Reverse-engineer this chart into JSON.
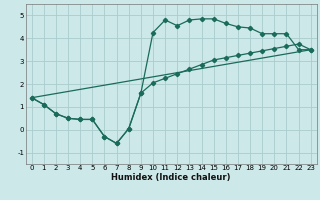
{
  "xlabel": "Humidex (Indice chaleur)",
  "bg_color": "#cce8e8",
  "grid_color": "#aacccc",
  "line_color": "#1a6b5a",
  "ylim": [
    -1.5,
    5.5
  ],
  "xlim": [
    -0.5,
    23.5
  ],
  "yticks": [
    -1,
    0,
    1,
    2,
    3,
    4,
    5
  ],
  "xticks": [
    0,
    1,
    2,
    3,
    4,
    5,
    6,
    7,
    8,
    9,
    10,
    11,
    12,
    13,
    14,
    15,
    16,
    17,
    18,
    19,
    20,
    21,
    22,
    23
  ],
  "line1_x": [
    0,
    1,
    2,
    3,
    4,
    5,
    6,
    7,
    8,
    9,
    10,
    11,
    12,
    13,
    14,
    15,
    16,
    17,
    18,
    19,
    20,
    21,
    22,
    23
  ],
  "line1_y": [
    1.4,
    1.1,
    0.7,
    0.5,
    0.45,
    0.45,
    -0.3,
    -0.6,
    0.05,
    1.6,
    4.25,
    4.8,
    4.55,
    4.8,
    4.85,
    4.85,
    4.65,
    4.5,
    4.45,
    4.2,
    4.2,
    4.2,
    3.5,
    3.5
  ],
  "line2_x": [
    0,
    1,
    2,
    3,
    4,
    5,
    6,
    7,
    8,
    9,
    10,
    11,
    12,
    13,
    14,
    15,
    16,
    17,
    18,
    19,
    20,
    21,
    22,
    23
  ],
  "line2_y": [
    1.4,
    1.1,
    0.7,
    0.5,
    0.45,
    0.45,
    -0.3,
    -0.6,
    0.05,
    1.6,
    2.05,
    2.25,
    2.45,
    2.65,
    2.85,
    3.05,
    3.15,
    3.25,
    3.35,
    3.45,
    3.55,
    3.65,
    3.75,
    3.5
  ],
  "line3_x": [
    0,
    23
  ],
  "line3_y": [
    1.4,
    3.5
  ]
}
